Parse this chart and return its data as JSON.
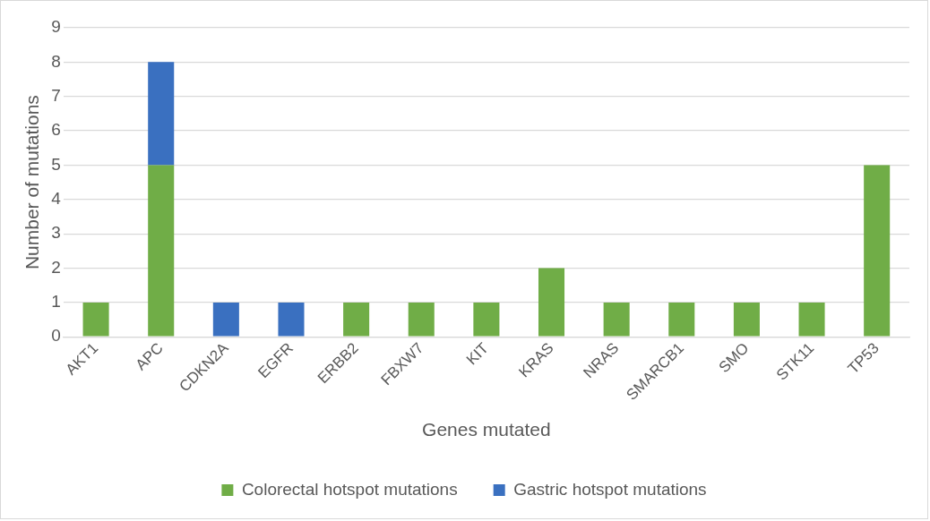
{
  "chart_data": {
    "type": "bar",
    "stacked": true,
    "xlabel": "Genes mutated",
    "ylabel": "Number of mutations",
    "categories": [
      "AKT1",
      "APC",
      "CDKN2A",
      "EGFR",
      "ERBB2",
      "FBXW7",
      "KIT",
      "KRAS",
      "NRAS",
      "SMARCB1",
      "SMO",
      "STK11",
      "TP53"
    ],
    "series": [
      {
        "name": "Colorectal hotspot mutations",
        "color": "#70ad47",
        "values": [
          1,
          5,
          0,
          0,
          1,
          1,
          1,
          2,
          1,
          1,
          1,
          1,
          5
        ]
      },
      {
        "name": "Gastric hotspot mutations",
        "color": "#3a70c0",
        "values": [
          0,
          3,
          1,
          1,
          0,
          0,
          0,
          0,
          0,
          0,
          0,
          0,
          0
        ]
      }
    ],
    "ylim": [
      0,
      9
    ],
    "yticks": [
      0,
      1,
      2,
      3,
      4,
      5,
      6,
      7,
      8,
      9
    ],
    "grid": "y",
    "legend": "bottom"
  }
}
